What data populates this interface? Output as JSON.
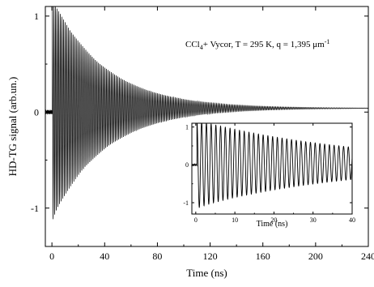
{
  "chart_data": [
    {
      "type": "line",
      "xlabel": "Time (ns)",
      "ylabel": "HD-TG signal (arb.un.)",
      "xlim": [
        -5,
        240
      ],
      "ylim": [
        -1.4,
        1.1
      ],
      "xticks": [
        0,
        40,
        80,
        120,
        160,
        200,
        240
      ],
      "xtick_labels": [
        "0",
        "40",
        "80",
        "120",
        "160",
        "200",
        "240"
      ],
      "yticks": [
        1,
        0,
        -1
      ],
      "ytick_labels": [
        "1",
        "0",
        "-1"
      ],
      "grid": false,
      "annotation": {
        "main": "CCl",
        "sub": "4",
        "rest": "+ Vycor, T = 295 K, q = 1,395 μm",
        "sup": "-1"
      },
      "series": [
        {
          "values_description_free": true,
          "model": {
            "period_ns": 1.21,
            "decay_ns": 40,
            "baseline": 0.04,
            "initial_amplitude": 1.15,
            "onset_ns": 0.3
          },
          "x_start": -5,
          "x_end": 240
        }
      ]
    },
    {
      "type": "line",
      "xlabel": "Time (ns)",
      "ylabel": "",
      "xlim": [
        -1,
        40
      ],
      "ylim": [
        -1.3,
        1.1
      ],
      "xticks": [
        0,
        10,
        20,
        30,
        40
      ],
      "xtick_labels": [
        "0",
        "10",
        "20",
        "30",
        "40"
      ],
      "yticks": [
        1,
        0,
        -1
      ],
      "ytick_labels": [
        "1",
        "0",
        "-1"
      ],
      "grid": false,
      "series": [
        {
          "model": {
            "period_ns": 1.21,
            "decay_ns": 40,
            "baseline": 0.04,
            "initial_amplitude": 1.15,
            "onset_ns": 0.3
          },
          "x_start": -1,
          "x_end": 40
        }
      ]
    }
  ]
}
